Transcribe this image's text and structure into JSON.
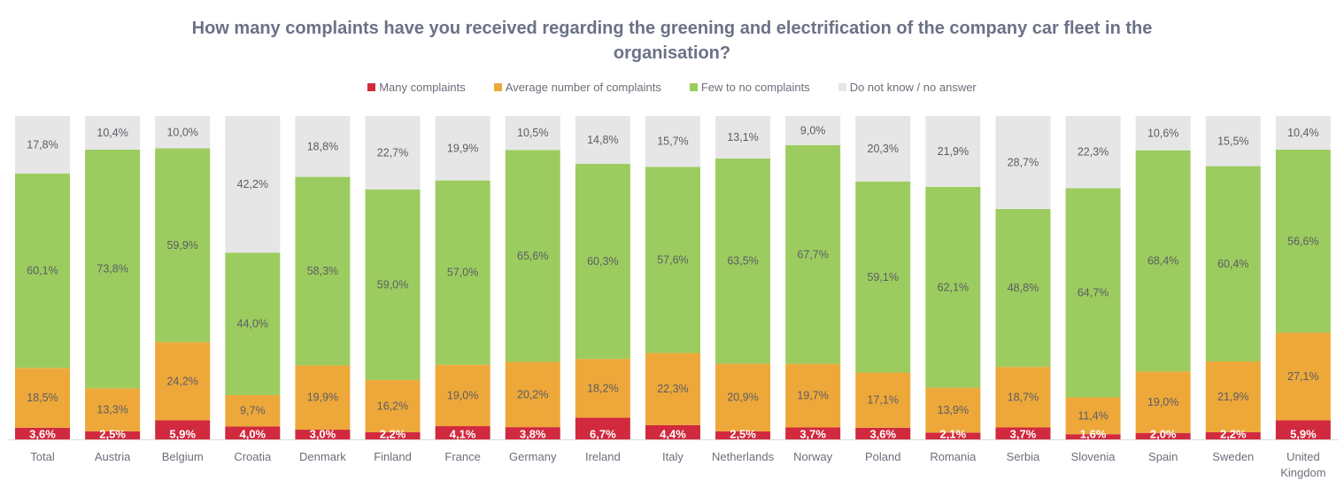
{
  "chart_data": {
    "type": "bar",
    "stacked": true,
    "percent_stacked": true,
    "title": "How many complaints have you received regarding the greening and electrification of the company car fleet in the organisation?",
    "title_lines": [
      "How many complaints have you received regarding the greening and electrification of the company car fleet in the",
      "organisation?"
    ],
    "xlabel": "",
    "ylabel": "",
    "ylim": [
      0,
      100
    ],
    "grid": false,
    "legend_position": "top-center",
    "categories": [
      "Total",
      "Austria",
      "Belgium",
      "Croatia",
      "Denmark",
      "Finland",
      "France",
      "Germany",
      "Ireland",
      "Italy",
      "Netherlands",
      "Norway",
      "Poland",
      "Romania",
      "Serbia",
      "Slovenia",
      "Spain",
      "Sweden",
      "United Kingdom"
    ],
    "category_label_lines": [
      [
        "Total"
      ],
      [
        "Austria"
      ],
      [
        "Belgium"
      ],
      [
        "Croatia"
      ],
      [
        "Denmark"
      ],
      [
        "Finland"
      ],
      [
        "France"
      ],
      [
        "Germany"
      ],
      [
        "Ireland"
      ],
      [
        "Italy"
      ],
      [
        "Netherlands"
      ],
      [
        "Norway"
      ],
      [
        "Poland"
      ],
      [
        "Romania"
      ],
      [
        "Serbia"
      ],
      [
        "Slovenia"
      ],
      [
        "Spain"
      ],
      [
        "Sweden"
      ],
      [
        "United",
        "Kingdom"
      ]
    ],
    "series": [
      {
        "name": "Many complaints",
        "color": "#d12a3f",
        "label_color": "#ffffff",
        "values": [
          3.6,
          2.5,
          5.9,
          4.0,
          3.0,
          2.2,
          4.1,
          3.8,
          6.7,
          4.4,
          2.5,
          3.7,
          3.6,
          2.1,
          3.7,
          1.6,
          2.0,
          2.2,
          5.9
        ],
        "labels": [
          "3,6%",
          "2,5%",
          "5,9%",
          "4,0%",
          "3,0%",
          "2,2%",
          "4,1%",
          "3,8%",
          "6,7%",
          "4,4%",
          "2,5%",
          "3,7%",
          "3,6%",
          "2,1%",
          "3,7%",
          "1,6%",
          "2,0%",
          "2,2%",
          "5,9%"
        ]
      },
      {
        "name": "Average number of complaints",
        "color": "#eea83a",
        "label_color": "#5a5d63",
        "values": [
          18.5,
          13.3,
          24.2,
          9.7,
          19.9,
          16.2,
          19.0,
          20.2,
          18.2,
          22.3,
          20.9,
          19.7,
          17.1,
          13.9,
          18.7,
          11.4,
          19.0,
          21.9,
          27.1
        ],
        "labels": [
          "18,5%",
          "13,3%",
          "24,2%",
          "9,7%",
          "19,9%",
          "16,2%",
          "19,0%",
          "20,2%",
          "18,2%",
          "22,3%",
          "20,9%",
          "19,7%",
          "17,1%",
          "13,9%",
          "18,7%",
          "11,4%",
          "19,0%",
          "21,9%",
          "27,1%"
        ]
      },
      {
        "name": "Few to no complaints",
        "color": "#9ccc5f",
        "label_color": "#5a5d63",
        "values": [
          60.1,
          73.8,
          59.9,
          44.0,
          58.3,
          59.0,
          57.0,
          65.6,
          60.3,
          57.6,
          63.5,
          67.7,
          59.1,
          62.1,
          48.8,
          64.7,
          68.4,
          60.4,
          56.6
        ],
        "labels": [
          "60,1%",
          "73,8%",
          "59,9%",
          "44,0%",
          "58,3%",
          "59,0%",
          "57,0%",
          "65,6%",
          "60,3%",
          "57,6%",
          "63,5%",
          "67,7%",
          "59,1%",
          "62,1%",
          "48,8%",
          "64,7%",
          "68,4%",
          "60,4%",
          "56,6%"
        ]
      },
      {
        "name": "Do not know / no answer",
        "color": "#e6e6e6",
        "label_color": "#5a5d63",
        "values": [
          17.8,
          10.4,
          10.0,
          42.2,
          18.8,
          22.7,
          19.9,
          10.5,
          14.8,
          15.7,
          13.1,
          9.0,
          20.3,
          21.9,
          28.7,
          22.3,
          10.6,
          15.5,
          10.4
        ],
        "labels": [
          "17,8%",
          "10,4%",
          "10,0%",
          "42,2%",
          "18,8%",
          "22,7%",
          "19,9%",
          "10,5%",
          "14,8%",
          "15,7%",
          "13,1%",
          "9,0%",
          "20,3%",
          "21,9%",
          "28,7%",
          "22,3%",
          "10,6%",
          "15,5%",
          "10,4%"
        ]
      }
    ]
  }
}
